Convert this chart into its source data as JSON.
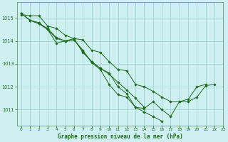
{
  "title": "Graphe pression niveau de la mer (hPa)",
  "background_color": "#cff0f0",
  "grid_color": "#99cccc",
  "line_color": "#1a6b1a",
  "xlim": [
    -0.5,
    23
  ],
  "ylim": [
    1010.3,
    1015.7
  ],
  "xticks": [
    0,
    1,
    2,
    3,
    4,
    5,
    6,
    7,
    8,
    9,
    10,
    11,
    12,
    13,
    14,
    15,
    16,
    17,
    18,
    19,
    20,
    21,
    22,
    23
  ],
  "yticks": [
    1011,
    1012,
    1013,
    1014,
    1015
  ],
  "series": [
    [
      1015.15,
      1015.1,
      1015.1,
      1014.65,
      1014.55,
      1014.25,
      1014.1,
      1014.05,
      1013.6,
      1013.5,
      1013.1,
      1012.75,
      1012.7,
      1012.1,
      1012.0,
      1011.8,
      1011.55,
      1011.35,
      1011.35,
      1011.45,
      1012.0,
      1012.1,
      null,
      null
    ],
    [
      1015.2,
      1014.9,
      1014.75,
      1014.5,
      1014.1,
      1014.0,
      1014.05,
      1013.55,
      1013.1,
      1012.8,
      1012.55,
      1012.2,
      1011.85,
      1011.5,
      1011.1,
      null,
      null,
      null,
      null,
      null,
      null,
      null,
      null,
      null
    ],
    [
      1015.2,
      1014.9,
      1014.75,
      1014.55,
      1014.15,
      1014.0,
      1014.05,
      1013.6,
      1013.05,
      1012.75,
      1012.1,
      1011.65,
      1011.55,
      1011.1,
      1011.05,
      1011.35,
      1011.0,
      1010.7,
      1011.35,
      1011.35,
      1011.55,
      1012.05,
      1012.1,
      null
    ],
    [
      1015.2,
      1014.9,
      1014.8,
      1014.5,
      1013.9,
      1014.0,
      1014.1,
      1013.5,
      1013.1,
      1012.8,
      1012.6,
      1012.0,
      1011.7,
      1011.1,
      1010.9,
      1010.7,
      1010.5,
      null,
      null,
      null,
      null,
      null,
      null,
      null
    ]
  ]
}
